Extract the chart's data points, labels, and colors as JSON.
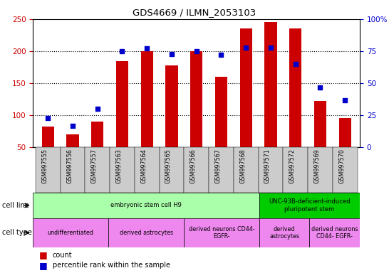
{
  "title": "GDS4669 / ILMN_2053103",
  "samples": [
    "GSM997555",
    "GSM997556",
    "GSM997557",
    "GSM997563",
    "GSM997564",
    "GSM997565",
    "GSM997566",
    "GSM997567",
    "GSM997568",
    "GSM997571",
    "GSM997572",
    "GSM997569",
    "GSM997570"
  ],
  "counts": [
    83,
    70,
    90,
    185,
    200,
    178,
    200,
    160,
    236,
    245,
    235,
    122,
    96
  ],
  "percentile": [
    23,
    17,
    30,
    75,
    77,
    73,
    75,
    72,
    78,
    78,
    65,
    47,
    37
  ],
  "bar_color": "#cc0000",
  "dot_color": "#0000cc",
  "ylim_left": [
    50,
    250
  ],
  "ylim_right": [
    0,
    100
  ],
  "yticks_left": [
    50,
    100,
    150,
    200,
    250
  ],
  "yticks_right": [
    0,
    25,
    50,
    75,
    100
  ],
  "ytick_labels_right": [
    "0",
    "25",
    "50",
    "75",
    "100%"
  ],
  "cell_line_groups": [
    {
      "label": "embryonic stem cell H9",
      "start": 0,
      "end": 9,
      "color": "#aaffaa"
    },
    {
      "label": "UNC-93B-deficient-induced\npluripotent stem",
      "start": 9,
      "end": 13,
      "color": "#00cc00"
    }
  ],
  "cell_type_groups": [
    {
      "label": "undifferentiated",
      "start": 0,
      "end": 3,
      "color": "#ee88ee"
    },
    {
      "label": "derived astrocytes",
      "start": 3,
      "end": 6,
      "color": "#ee88ee"
    },
    {
      "label": "derived neurons CD44-\nEGFR-",
      "start": 6,
      "end": 9,
      "color": "#ee88ee"
    },
    {
      "label": "derived\nastrocytes",
      "start": 9,
      "end": 11,
      "color": "#ee88ee"
    },
    {
      "label": "derived neurons\nCD44- EGFR-",
      "start": 11,
      "end": 13,
      "color": "#ee88ee"
    }
  ],
  "bg_color": "#ffffff",
  "tick_area_color": "#cccccc",
  "grid_lines": [
    100,
    150,
    200
  ],
  "bar_width": 0.5
}
